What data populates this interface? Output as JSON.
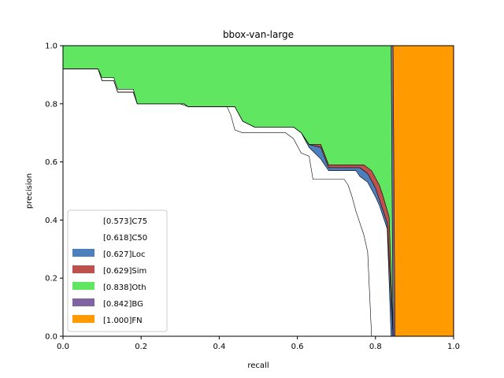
{
  "chart_data": {
    "type": "area",
    "title": "bbox-van-large",
    "xlabel": "recall",
    "ylabel": "precision",
    "xlim": [
      0,
      1
    ],
    "ylim": [
      0,
      1
    ],
    "xticks": [
      "0.0",
      "0.2",
      "0.4",
      "0.6",
      "0.8",
      "1.0"
    ],
    "yticks": [
      "0.0",
      "0.2",
      "0.4",
      "0.6",
      "0.8",
      "1.0"
    ],
    "grid": false,
    "legend_position": "lower-left",
    "series": [
      {
        "name": "[0.573]C75",
        "color": "#ffffff",
        "points": [
          [
            0,
            0.92
          ],
          [
            0.09,
            0.92
          ],
          [
            0.1,
            0.89
          ],
          [
            0.13,
            0.89
          ],
          [
            0.14,
            0.85
          ],
          [
            0.18,
            0.85
          ],
          [
            0.19,
            0.8
          ],
          [
            0.3,
            0.8
          ],
          [
            0.32,
            0.79
          ],
          [
            0.42,
            0.79
          ],
          [
            0.43,
            0.76
          ],
          [
            0.44,
            0.71
          ],
          [
            0.46,
            0.7
          ],
          [
            0.57,
            0.7
          ],
          [
            0.59,
            0.68
          ],
          [
            0.61,
            0.63
          ],
          [
            0.63,
            0.62
          ],
          [
            0.64,
            0.54
          ],
          [
            0.72,
            0.54
          ],
          [
            0.73,
            0.52
          ],
          [
            0.74,
            0.48
          ],
          [
            0.75,
            0.43
          ],
          [
            0.77,
            0.35
          ],
          [
            0.78,
            0.29
          ],
          [
            0.79,
            0.0
          ]
        ]
      },
      {
        "name": "[0.618]C50",
        "color": "#ffffff",
        "points": [
          [
            0,
            0.92
          ],
          [
            0.09,
            0.92
          ],
          [
            0.1,
            0.88
          ],
          [
            0.13,
            0.88
          ],
          [
            0.14,
            0.84
          ],
          [
            0.18,
            0.84
          ],
          [
            0.19,
            0.8
          ],
          [
            0.31,
            0.8
          ],
          [
            0.32,
            0.79
          ],
          [
            0.44,
            0.79
          ],
          [
            0.46,
            0.74
          ],
          [
            0.49,
            0.72
          ],
          [
            0.59,
            0.72
          ],
          [
            0.61,
            0.7
          ],
          [
            0.63,
            0.65
          ],
          [
            0.66,
            0.61
          ],
          [
            0.68,
            0.57
          ],
          [
            0.75,
            0.57
          ],
          [
            0.76,
            0.55
          ],
          [
            0.78,
            0.53
          ],
          [
            0.8,
            0.48
          ],
          [
            0.81,
            0.45
          ],
          [
            0.83,
            0.37
          ],
          [
            0.84,
            0.0
          ]
        ]
      },
      {
        "name": "[0.627]Loc",
        "color": "#4c7fbb",
        "points": [
          [
            0,
            0.92
          ],
          [
            0.09,
            0.92
          ],
          [
            0.1,
            0.88
          ],
          [
            0.13,
            0.88
          ],
          [
            0.14,
            0.84
          ],
          [
            0.18,
            0.84
          ],
          [
            0.19,
            0.8
          ],
          [
            0.31,
            0.8
          ],
          [
            0.32,
            0.79
          ],
          [
            0.44,
            0.79
          ],
          [
            0.46,
            0.74
          ],
          [
            0.49,
            0.72
          ],
          [
            0.59,
            0.72
          ],
          [
            0.61,
            0.7
          ],
          [
            0.63,
            0.66
          ],
          [
            0.66,
            0.65
          ],
          [
            0.68,
            0.58
          ],
          [
            0.76,
            0.58
          ],
          [
            0.78,
            0.56
          ],
          [
            0.8,
            0.51
          ],
          [
            0.81,
            0.47
          ],
          [
            0.83,
            0.39
          ],
          [
            0.845,
            0.0
          ]
        ]
      },
      {
        "name": "[0.629]Sim",
        "color": "#c0504d",
        "points": [
          [
            0,
            0.92
          ],
          [
            0.09,
            0.92
          ],
          [
            0.1,
            0.88
          ],
          [
            0.13,
            0.88
          ],
          [
            0.14,
            0.84
          ],
          [
            0.18,
            0.84
          ],
          [
            0.19,
            0.8
          ],
          [
            0.31,
            0.8
          ],
          [
            0.32,
            0.79
          ],
          [
            0.44,
            0.79
          ],
          [
            0.46,
            0.74
          ],
          [
            0.49,
            0.72
          ],
          [
            0.59,
            0.72
          ],
          [
            0.61,
            0.7
          ],
          [
            0.63,
            0.66
          ],
          [
            0.66,
            0.66
          ],
          [
            0.68,
            0.59
          ],
          [
            0.77,
            0.59
          ],
          [
            0.79,
            0.57
          ],
          [
            0.81,
            0.52
          ],
          [
            0.82,
            0.48
          ],
          [
            0.835,
            0.41
          ],
          [
            0.845,
            0.0
          ]
        ]
      },
      {
        "name": "[0.838]Oth",
        "color": "#60e660",
        "points": [
          [
            0,
            1.0
          ],
          [
            0.84,
            1.0
          ],
          [
            0.845,
            0.0
          ]
        ]
      },
      {
        "name": "[0.842]BG",
        "color": "#8064a2",
        "points": [
          [
            0,
            1.0
          ],
          [
            0.845,
            1.0
          ],
          [
            0.85,
            0.0
          ]
        ]
      },
      {
        "name": "[1.000]FN",
        "color": "#ff9a00",
        "points": [
          [
            0,
            1.0
          ],
          [
            1.0,
            1.0
          ],
          [
            1.0,
            0.0
          ]
        ]
      }
    ]
  }
}
